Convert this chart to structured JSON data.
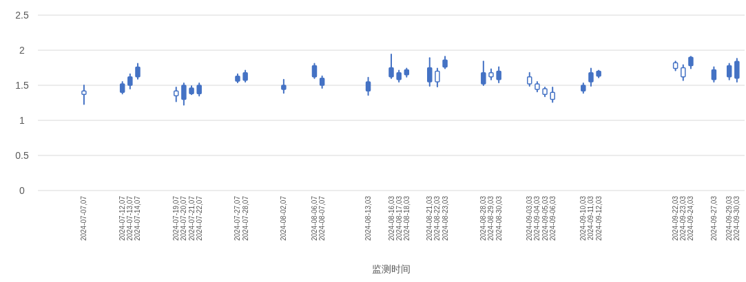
{
  "chart_data": {
    "type": "candlestick",
    "xlabel": "监测时间",
    "x": [
      "2024-07-07",
      "2024-07-12",
      "2024-07-13",
      "2024-07-14",
      "2024-07-19",
      "2024-07-20",
      "2024-07-21",
      "2024-07-22",
      "2024-07-27",
      "2024-07-28",
      "2024-08-02",
      "2024-08-06",
      "2024-08-07",
      "2024-08-13",
      "2024-08-16",
      "2024-08-17",
      "2024-08-18",
      "2024-08-21",
      "2024-08-22",
      "2024-08-23",
      "2024-08-28",
      "2024-08-29",
      "2024-08-30",
      "2024-09-03",
      "2024-09-04",
      "2024-09-05",
      "2024-09-06",
      "2024-09-10",
      "2024-09-11",
      "2024-09-12",
      "2024-09-22",
      "2024-09-23",
      "2024-09-24",
      "2024-09-27",
      "2024-09-29",
      "2024-09-30"
    ],
    "ohlc": [
      [
        1.42,
        1.5,
        1.23,
        1.37
      ],
      [
        1.4,
        1.55,
        1.38,
        1.52
      ],
      [
        1.5,
        1.66,
        1.45,
        1.62
      ],
      [
        1.62,
        1.81,
        1.59,
        1.76
      ],
      [
        1.42,
        1.47,
        1.27,
        1.35
      ],
      [
        1.3,
        1.53,
        1.22,
        1.5
      ],
      [
        1.38,
        1.49,
        1.37,
        1.46
      ],
      [
        1.38,
        1.53,
        1.35,
        1.5
      ],
      [
        1.56,
        1.66,
        1.54,
        1.63
      ],
      [
        1.57,
        1.71,
        1.55,
        1.68
      ],
      [
        1.44,
        1.58,
        1.39,
        1.5
      ],
      [
        1.62,
        1.81,
        1.6,
        1.78
      ],
      [
        1.5,
        1.63,
        1.46,
        1.6
      ],
      [
        1.42,
        1.61,
        1.36,
        1.55
      ],
      [
        1.62,
        1.94,
        1.6,
        1.75
      ],
      [
        1.58,
        1.71,
        1.55,
        1.68
      ],
      [
        1.65,
        1.74,
        1.62,
        1.72
      ],
      [
        1.55,
        1.89,
        1.49,
        1.75
      ],
      [
        1.7,
        1.74,
        1.48,
        1.55
      ],
      [
        1.76,
        1.91,
        1.74,
        1.86
      ],
      [
        1.52,
        1.84,
        1.5,
        1.68
      ],
      [
        1.68,
        1.73,
        1.58,
        1.62
      ],
      [
        1.58,
        1.76,
        1.54,
        1.7
      ],
      [
        1.62,
        1.68,
        1.49,
        1.52
      ],
      [
        1.52,
        1.55,
        1.41,
        1.44
      ],
      [
        1.45,
        1.47,
        1.34,
        1.37
      ],
      [
        1.4,
        1.47,
        1.26,
        1.3
      ],
      [
        1.42,
        1.53,
        1.39,
        1.5
      ],
      [
        1.55,
        1.74,
        1.49,
        1.68
      ],
      [
        1.63,
        1.71,
        1.61,
        1.7
      ],
      [
        1.82,
        1.84,
        1.71,
        1.74
      ],
      [
        1.75,
        1.79,
        1.57,
        1.62
      ],
      [
        1.78,
        1.91,
        1.74,
        1.9
      ],
      [
        1.58,
        1.76,
        1.55,
        1.72
      ],
      [
        1.62,
        1.81,
        1.58,
        1.78
      ],
      [
        1.6,
        1.88,
        1.55,
        1.84
      ]
    ],
    "color": "#4472c4",
    "xlim": [
      "2024-07-01",
      "2024-10-01"
    ],
    "xticks": [
      {
        "value": "2024-07-07",
        "label": "2024-07-07,07"
      },
      {
        "value": "2024-07-12",
        "label": "2024-07-12,07"
      },
      {
        "value": "2024-07-13",
        "label": "2024-07-13,07"
      },
      {
        "value": "2024-07-14",
        "label": "2024-07-14,07"
      },
      {
        "value": "2024-07-19",
        "label": "2024-07-19,07"
      },
      {
        "value": "2024-07-20",
        "label": "2024-07-20,07"
      },
      {
        "value": "2024-07-21",
        "label": "2024-07-21,07"
      },
      {
        "value": "2024-07-22",
        "label": "2024-07-22,07"
      },
      {
        "value": "2024-07-27",
        "label": "2024-07-27,07"
      },
      {
        "value": "2024-07-28",
        "label": "2024-07-28,07"
      },
      {
        "value": "2024-08-02",
        "label": "2024-08-02,07"
      },
      {
        "value": "2024-08-06",
        "label": "2024-08-06,07"
      },
      {
        "value": "2024-08-07",
        "label": "2024-08-07,07"
      },
      {
        "value": "2024-08-13",
        "label": "2024-08-13,03"
      },
      {
        "value": "2024-08-16",
        "label": "2024-08-16,03"
      },
      {
        "value": "2024-08-17",
        "label": "2024-08-17,03"
      },
      {
        "value": "2024-08-18",
        "label": "2024-08-18,03"
      },
      {
        "value": "2024-08-21",
        "label": "2024-08-21,03"
      },
      {
        "value": "2024-08-22",
        "label": "2024-08-22,03"
      },
      {
        "value": "2024-08-23",
        "label": "2024-08-23,03"
      },
      {
        "value": "2024-08-28",
        "label": "2024-08-28,03"
      },
      {
        "value": "2024-08-29",
        "label": "2024-08-29,03"
      },
      {
        "value": "2024-08-30",
        "label": "2024-08-30,03"
      },
      {
        "value": "2024-09-03",
        "label": "2024-09-03,03"
      },
      {
        "value": "2024-09-04",
        "label": "2024-09-04,03"
      },
      {
        "value": "2024-09-05",
        "label": "2024-09-05,03"
      },
      {
        "value": "2024-09-06",
        "label": "2024-09-06,03"
      },
      {
        "value": "2024-09-10",
        "label": "2024-09-10,03"
      },
      {
        "value": "2024-09-11",
        "label": "2024-09-11,03"
      },
      {
        "value": "2024-09-12",
        "label": "2024-09-12,03"
      },
      {
        "value": "2024-09-22",
        "label": "2024-09-22,03"
      },
      {
        "value": "2024-09-23",
        "label": "2024-09-23,03"
      },
      {
        "value": "2024-09-24",
        "label": "2024-09-24,03"
      },
      {
        "value": "2024-09-27",
        "label": "2024-09-27,03"
      },
      {
        "value": "2024-09-29",
        "label": "2024-09-29,03"
      },
      {
        "value": "2024-09-30",
        "label": "2024-09-30,03"
      }
    ],
    "ylim": [
      0,
      2.5
    ],
    "yticks": [
      0,
      0.5,
      1,
      1.5,
      2,
      2.5
    ],
    "grid": "y"
  }
}
